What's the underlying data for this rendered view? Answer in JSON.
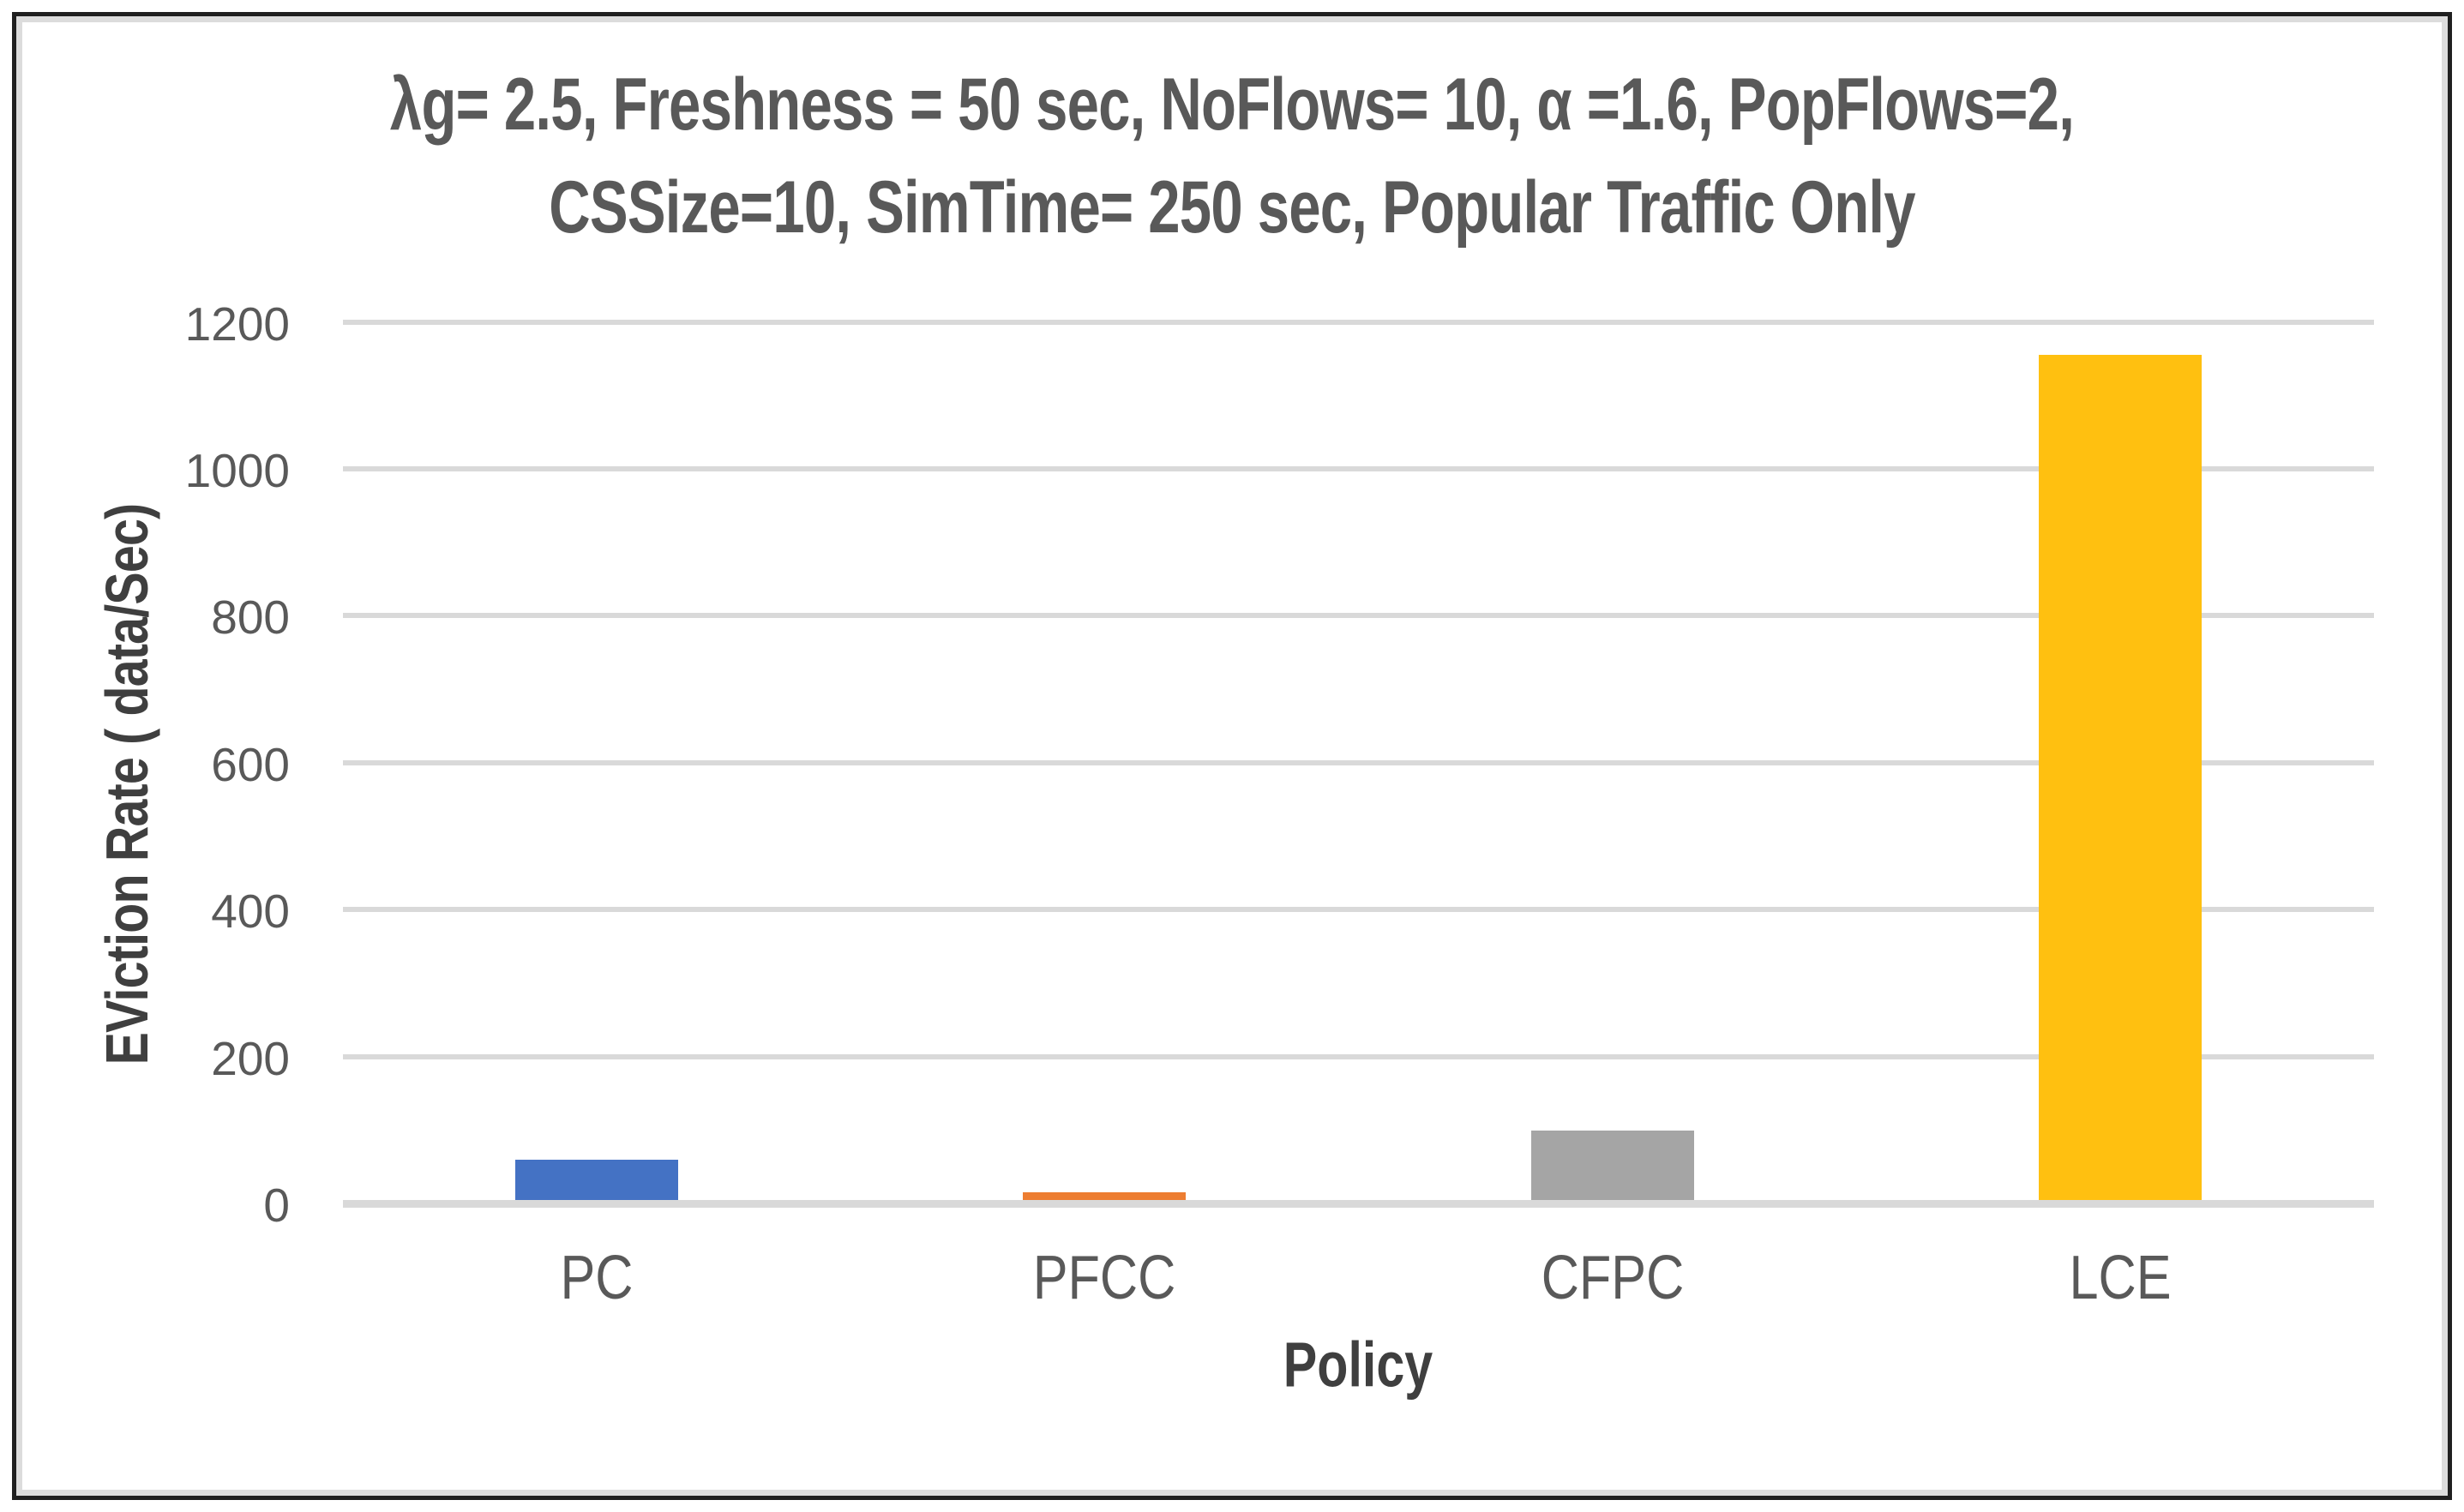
{
  "page": {
    "background": "#ffffff",
    "outer_border_color": "#1f1f1f",
    "inner_border_color": "#dcdcdc"
  },
  "chart_data": {
    "type": "bar",
    "title_lines": [
      "λg= 2.5, Freshness = 50 sec, NoFlows= 10, α =1.6, PopFlows=2,",
      "CSSize=10, SimTime= 250 sec, Popular Traffic Only"
    ],
    "categories": [
      "PC",
      "PFCC",
      "CFPC",
      "LCE"
    ],
    "values": [
      55,
      10,
      95,
      1150
    ],
    "bar_colors": [
      "#4472C4",
      "#ED7D31",
      "#A5A5A5",
      "#FFC010"
    ],
    "xlabel": "Policy",
    "ylabel": "EViction Rate ( data/Sec)",
    "ylim": [
      0,
      1200
    ],
    "yticks": [
      0,
      200,
      400,
      600,
      800,
      1000,
      1200
    ],
    "grid": true,
    "legend_position": "none",
    "gridline_color": "#d9d9d9",
    "tick_text_color": "#595959",
    "axis_title_color": "#3f3f3f",
    "title_color": "#595959"
  }
}
